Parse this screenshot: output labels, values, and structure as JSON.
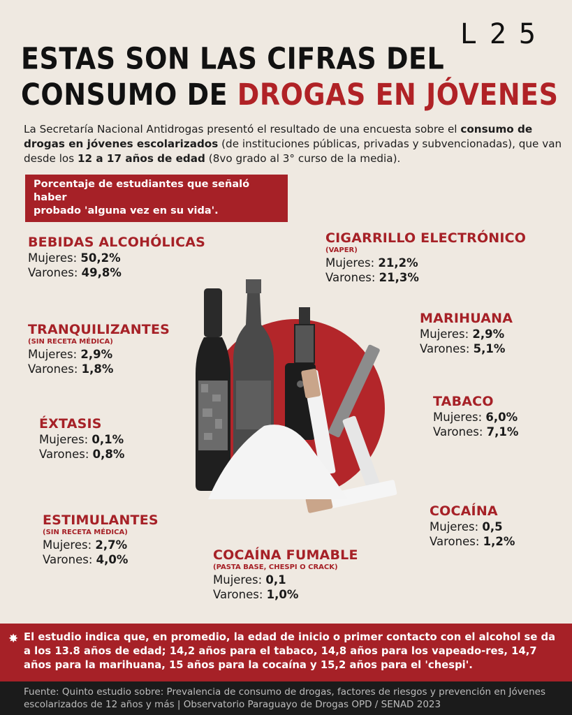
{
  "logo": "L25",
  "title": {
    "line1": "ESTAS SON LAS CIFRAS DEL",
    "line2_plain": "CONSUMO DE ",
    "line2_accent": "DROGAS EN JÓVENES"
  },
  "intro": {
    "p1": "La Secretaría Nacional Antidrogas presentó el resultado de una encuesta sobre el ",
    "b1": "consumo de drogas en jóvenes escolarizados",
    "p2": " (de instituciones públicas, privadas y subvencionadas), que van desde los ",
    "b2": "12 a 17 años de edad",
    "p3": " (8vo grado al 3° curso de la media)."
  },
  "banner": {
    "line1": "Porcentaje de estudiantes que señaló haber",
    "line2": "probado 'alguna vez en su vida'."
  },
  "labels": {
    "women": "Mujeres: ",
    "men": "Varones: "
  },
  "stats": {
    "alcohol": {
      "name": "BEBIDAS ALCOHÓLICAS",
      "women": "50,2%",
      "men": "49,8%"
    },
    "vaper": {
      "name": "CIGARRILLO ELECTRÓNICO",
      "sub": "(VAPER)",
      "women": "21,2%",
      "men": "21,3%"
    },
    "tranq": {
      "name": "TRANQUILIZANTES",
      "sub": "(SIN RECETA MÉDICA)",
      "women": "2,9%",
      "men": "1,8%"
    },
    "marihuana": {
      "name": "MARIHUANA",
      "women": "2,9%",
      "men": "5,1%"
    },
    "extasis": {
      "name": "ÉXTASIS",
      "women": "0,1%",
      "men": "0,8%"
    },
    "tabaco": {
      "name": "TABACO",
      "women": "6,0%",
      "men": "7,1%"
    },
    "estimulantes": {
      "name": "ESTIMULANTES",
      "sub": "(SIN RECETA MÉDICA)",
      "women": "2,7%",
      "men": "4,0%"
    },
    "cocaina": {
      "name": "COCAÍNA",
      "women": "0,5",
      "men": "1,2%"
    },
    "fumable": {
      "name": "COCAÍNA FUMABLE",
      "sub": "(PASTA BASE, CHESPI O CRACK)",
      "women": "0,1",
      "men": "1,0%"
    }
  },
  "bottom": {
    "star": "✸",
    "text": "El estudio indica que, en promedio, la edad de inicio o primer contacto con el alcohol se da a los 13.8 años de edad; 14,2 años para el tabaco, 14,8 años para los vapeado-res, 14,7 años para la marihuana, 15 años para la cocaína y 15,2 años para el 'chespi'."
  },
  "footer": {
    "line1": "Fuente: Quinto estudio sobre: Prevalencia de consumo de drogas, factores de riesgos y prevención en Jóvenes",
    "line2": "escolarizados de 12 años y más | Observatorio Paraguayo de Drogas OPD / SENAD 2023"
  },
  "colors": {
    "accent": "#a62127",
    "background": "#efe9e1",
    "footer_bg": "#1b1b1b"
  }
}
